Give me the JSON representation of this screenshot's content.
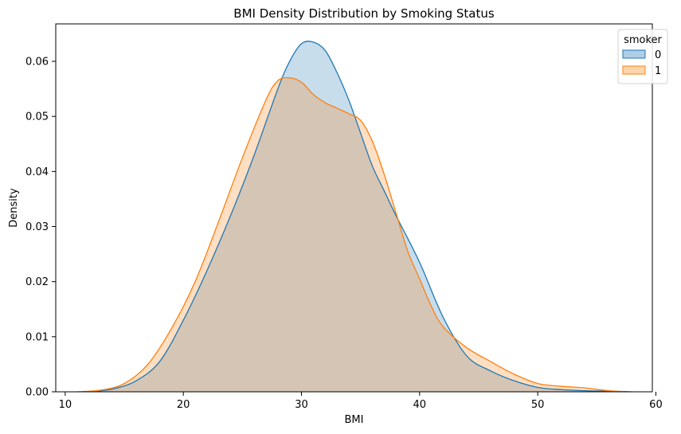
{
  "chart_data": {
    "type": "area",
    "title": "BMI Density Distribution by Smoking Status",
    "xlabel": "BMI",
    "ylabel": "Density",
    "xlim": [
      9.2,
      59.7
    ],
    "ylim": [
      0,
      0.0668
    ],
    "xticks": [
      10,
      20,
      30,
      40,
      50,
      60
    ],
    "yticks": [
      0.0,
      0.01,
      0.02,
      0.03,
      0.04,
      0.05,
      0.06
    ],
    "ytick_labels": [
      "0.00",
      "0.01",
      "0.02",
      "0.03",
      "0.04",
      "0.05",
      "0.06"
    ],
    "grid": false,
    "legend": {
      "title": "smoker",
      "placement": "top-right"
    },
    "series": [
      {
        "name": "0",
        "color": "#1f77b4",
        "fill": "#aecde6",
        "points": [
          [
            12,
            0
          ],
          [
            14,
            0.0005
          ],
          [
            16,
            0.002
          ],
          [
            18,
            0.0055
          ],
          [
            20,
            0.013
          ],
          [
            22,
            0.022
          ],
          [
            24,
            0.032
          ],
          [
            26,
            0.043
          ],
          [
            28,
            0.055
          ],
          [
            29,
            0.06
          ],
          [
            30,
            0.0632
          ],
          [
            31,
            0.0635
          ],
          [
            32,
            0.062
          ],
          [
            33,
            0.058
          ],
          [
            34,
            0.053
          ],
          [
            35,
            0.047
          ],
          [
            36,
            0.041
          ],
          [
            37,
            0.0365
          ],
          [
            38,
            0.032
          ],
          [
            40,
            0.0235
          ],
          [
            42,
            0.0135
          ],
          [
            44,
            0.0065
          ],
          [
            46,
            0.0038
          ],
          [
            48,
            0.002
          ],
          [
            50,
            0.0008
          ],
          [
            52,
            0.0004
          ],
          [
            54,
            0.0002
          ],
          [
            56,
            0.0001
          ],
          [
            57.5,
            0
          ]
        ]
      },
      {
        "name": "1",
        "color": "#ff7f0e",
        "fill": "#fed4ab",
        "points": [
          [
            11,
            0
          ],
          [
            13,
            0.0003
          ],
          [
            15,
            0.0015
          ],
          [
            17,
            0.005
          ],
          [
            19,
            0.0115
          ],
          [
            21,
            0.02
          ],
          [
            23,
            0.031
          ],
          [
            25,
            0.0425
          ],
          [
            27,
            0.053
          ],
          [
            28,
            0.0565
          ],
          [
            29,
            0.057
          ],
          [
            30,
            0.0562
          ],
          [
            31,
            0.054
          ],
          [
            32,
            0.0525
          ],
          [
            33,
            0.0515
          ],
          [
            34,
            0.0505
          ],
          [
            35,
            0.0493
          ],
          [
            36,
            0.0455
          ],
          [
            37,
            0.0395
          ],
          [
            38,
            0.0325
          ],
          [
            39,
            0.0255
          ],
          [
            40,
            0.0205
          ],
          [
            41,
            0.0155
          ],
          [
            42,
            0.0118
          ],
          [
            44,
            0.008
          ],
          [
            46,
            0.0055
          ],
          [
            48,
            0.0032
          ],
          [
            50,
            0.0015
          ],
          [
            52,
            0.001
          ],
          [
            54,
            0.0007
          ],
          [
            56,
            0.0002
          ],
          [
            58,
            0
          ]
        ]
      }
    ]
  }
}
